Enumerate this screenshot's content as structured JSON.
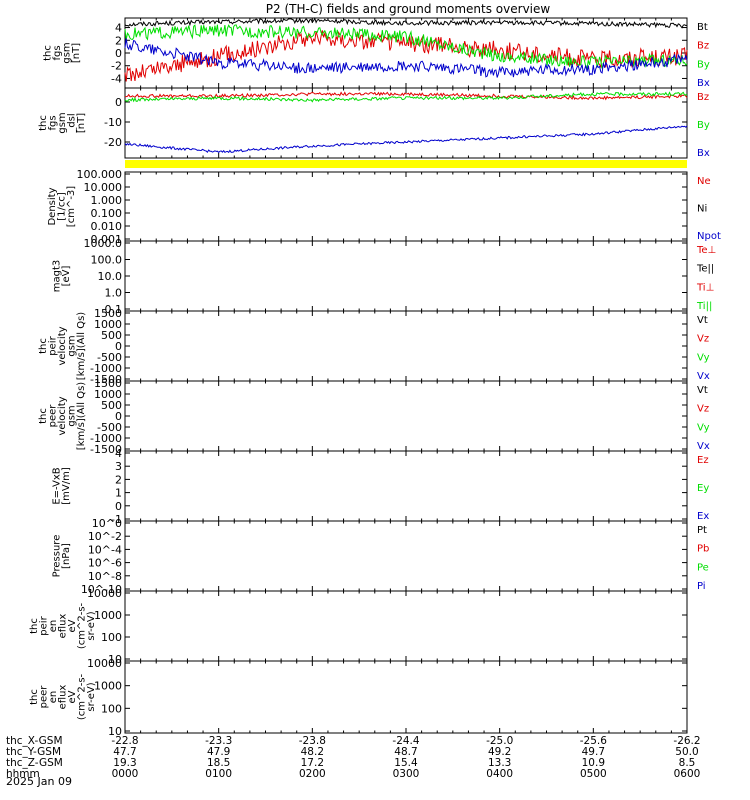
{
  "title": "P2 (TH-C) fields and ground moments overview",
  "date": "2025 Jan 09",
  "colors": {
    "black": "#000000",
    "red": "#e00000",
    "green": "#00dd00",
    "blue": "#0000cc",
    "yellow": "#ffff00"
  },
  "chart_data": [
    {
      "type": "line",
      "ylabel": [
        "thc",
        "fgs",
        "gsm",
        "[nT]"
      ],
      "ylim": [
        -5.5,
        5.5
      ],
      "ticks": [
        "4",
        "2",
        "0",
        "-2",
        "-4"
      ],
      "tick_values": [
        4,
        2,
        0,
        -2,
        -4
      ],
      "legend": [
        "Bt",
        "Bz",
        "By",
        "Bx"
      ],
      "legend_colors": [
        "black",
        "red",
        "green",
        "blue"
      ],
      "x": [
        0,
        1,
        2,
        3,
        4,
        5,
        6
      ],
      "series": [
        {
          "name": "Bt",
          "color": "black",
          "values": [
            4.5,
            4.9,
            5.1,
            4.7,
            4.8,
            4.6,
            4.3
          ],
          "noise": 0.35
        },
        {
          "name": "Bz",
          "color": "red",
          "values": [
            -3.5,
            -0.5,
            2.5,
            1.5,
            0.5,
            -1.0,
            -0.5
          ],
          "noise": 1.4
        },
        {
          "name": "By",
          "color": "green",
          "values": [
            3.0,
            3.5,
            3.2,
            2.5,
            -0.5,
            -1.5,
            -1.0
          ],
          "noise": 1.0
        },
        {
          "name": "Bx",
          "color": "blue",
          "values": [
            1.5,
            -1.5,
            -2.5,
            -2.0,
            -3.0,
            -2.5,
            -1.0
          ],
          "noise": 0.9
        }
      ]
    },
    {
      "type": "line",
      "ylabel": [
        "thc",
        "fgs",
        "gsm",
        "_dsl",
        "[nT]"
      ],
      "ylim": [
        -28,
        7
      ],
      "ticks": [
        "0",
        "-10",
        "-20"
      ],
      "tick_values": [
        0,
        -10,
        -20
      ],
      "legend": [
        "Bz",
        "By",
        "Bx"
      ],
      "legend_colors": [
        "red",
        "green",
        "blue"
      ],
      "x": [
        0,
        1,
        2,
        3,
        4,
        5,
        6
      ],
      "series": [
        {
          "name": "Bz",
          "color": "red",
          "values": [
            3,
            3,
            4,
            4,
            3,
            2,
            3
          ],
          "noise": 0.8
        },
        {
          "name": "By",
          "color": "green",
          "values": [
            1,
            2,
            1,
            2,
            2,
            4,
            4
          ],
          "noise": 0.8
        },
        {
          "name": "Bx",
          "color": "blue",
          "values": [
            -21,
            -25,
            -22,
            -20,
            -18,
            -16,
            -12
          ],
          "noise": 0.6
        }
      ]
    },
    {
      "type": "line",
      "ylabel": [
        "Density",
        "[1/cc]",
        "[cm^-3]"
      ],
      "ticks": [
        "100.000",
        "10.000",
        "1.000",
        "0.100",
        "0.010",
        "0.001"
      ],
      "legend": [
        "Ne",
        "Ni",
        "Npot"
      ],
      "legend_colors": [
        "red",
        "black",
        "blue"
      ]
    },
    {
      "type": "line",
      "ylabel": [
        "magt3",
        "[eV]"
      ],
      "ticks": [
        "1000.0",
        "100.0",
        "10.0",
        "1.0",
        "0.1"
      ],
      "legend": [
        "Te⊥",
        "Te||",
        "Ti⊥",
        "Ti||"
      ],
      "legend_colors": [
        "red",
        "black",
        "red",
        "green"
      ]
    },
    {
      "type": "line",
      "ylabel": [
        "thc",
        "peir",
        "velocity",
        "gsm",
        "[km/s](All Qs)"
      ],
      "ticks": [
        "1500",
        "1000",
        "500",
        "0",
        "-500",
        "-1000",
        "-1500"
      ],
      "legend": [
        "Vt",
        "Vz",
        "Vy",
        "Vx"
      ],
      "legend_colors": [
        "black",
        "red",
        "green",
        "blue"
      ]
    },
    {
      "type": "line",
      "ylabel": [
        "thc",
        "peer",
        "velocity",
        "gsm",
        "[km/s](All Qs)"
      ],
      "ticks": [
        "1500",
        "1000",
        "500",
        "0",
        "-500",
        "-1000",
        "-1500"
      ],
      "legend": [
        "Vt",
        "Vz",
        "Vy",
        "Vx"
      ],
      "legend_colors": [
        "black",
        "red",
        "green",
        "blue"
      ]
    },
    {
      "type": "line",
      "ylabel": [
        "E=-VxB",
        "[mV/m]"
      ],
      "ticks": [
        "4",
        "3",
        "2",
        "1",
        "0",
        "-1"
      ],
      "legend": [
        "Ez",
        "Ey",
        "Ex"
      ],
      "legend_colors": [
        "red",
        "green",
        "blue"
      ]
    },
    {
      "type": "line",
      "ylabel": [
        "Pressure",
        "[nPa]"
      ],
      "ticks": [
        "10^0",
        "10^-2",
        "10^-4",
        "10^-6",
        "10^-8",
        "10^-10"
      ],
      "legend": [
        "Pt",
        "Pb",
        "Pe",
        "Pi"
      ],
      "legend_colors": [
        "black",
        "red",
        "green",
        "blue"
      ]
    },
    {
      "type": "heatmap",
      "ylabel": [
        "thc",
        "peir",
        "en",
        "eflux",
        "eV",
        "(cm^2-s-",
        "sr-eV)"
      ],
      "ticks": [
        "10000",
        "1000",
        "100",
        "10"
      ]
    },
    {
      "type": "heatmap",
      "ylabel": [
        "thc",
        "peer",
        "en",
        "eflux",
        "eV",
        "(cm^2-s-",
        "sr-eV)"
      ],
      "ticks": [
        "10000",
        "1000",
        "100",
        "10"
      ]
    }
  ],
  "x_axis": {
    "row_labels": [
      "thc_X-GSM",
      "thc_Y-GSM",
      "thc_Z-GSM",
      "hhmm"
    ],
    "columns": [
      [
        "-22.8",
        "47.7",
        "19.3",
        "0000"
      ],
      [
        "-23.3",
        "47.9",
        "18.5",
        "0100"
      ],
      [
        "-23.8",
        "48.2",
        "17.2",
        "0200"
      ],
      [
        "-24.4",
        "48.7",
        "15.4",
        "0300"
      ],
      [
        "-25.0",
        "49.2",
        "13.3",
        "0400"
      ],
      [
        "-25.6",
        "49.7",
        "10.9",
        "0500"
      ],
      [
        "-26.2",
        "50.0",
        "8.5",
        "0600"
      ]
    ]
  }
}
